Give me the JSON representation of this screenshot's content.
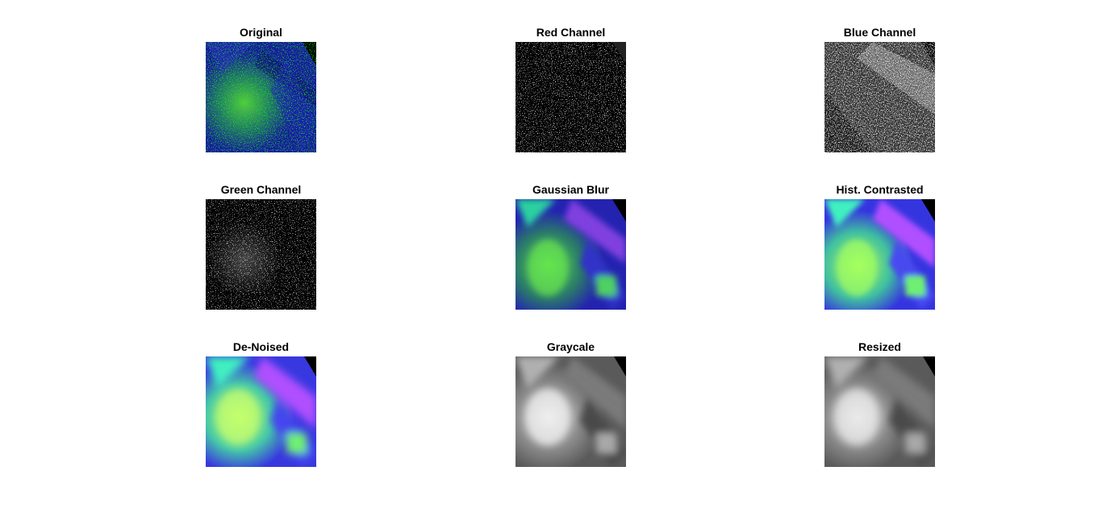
{
  "figure": {
    "panels": [
      {
        "id": "original",
        "title": "Original",
        "style": "color-speckled"
      },
      {
        "id": "red",
        "title": "Red Channel",
        "style": "dark-sparse"
      },
      {
        "id": "blue",
        "title": "Blue Channel",
        "style": "gray-speckled"
      },
      {
        "id": "green",
        "title": "Green Channel",
        "style": "dark-speckled"
      },
      {
        "id": "gaussian",
        "title": "Gaussian Blur",
        "style": "color-blur"
      },
      {
        "id": "hist",
        "title": "Hist. Contrasted",
        "style": "color-bright"
      },
      {
        "id": "denoise",
        "title": "De-Noised",
        "style": "color-smooth"
      },
      {
        "id": "gray",
        "title": "Graycale",
        "style": "grayscale"
      },
      {
        "id": "resized",
        "title": "Resized",
        "style": "grayscale"
      }
    ]
  }
}
